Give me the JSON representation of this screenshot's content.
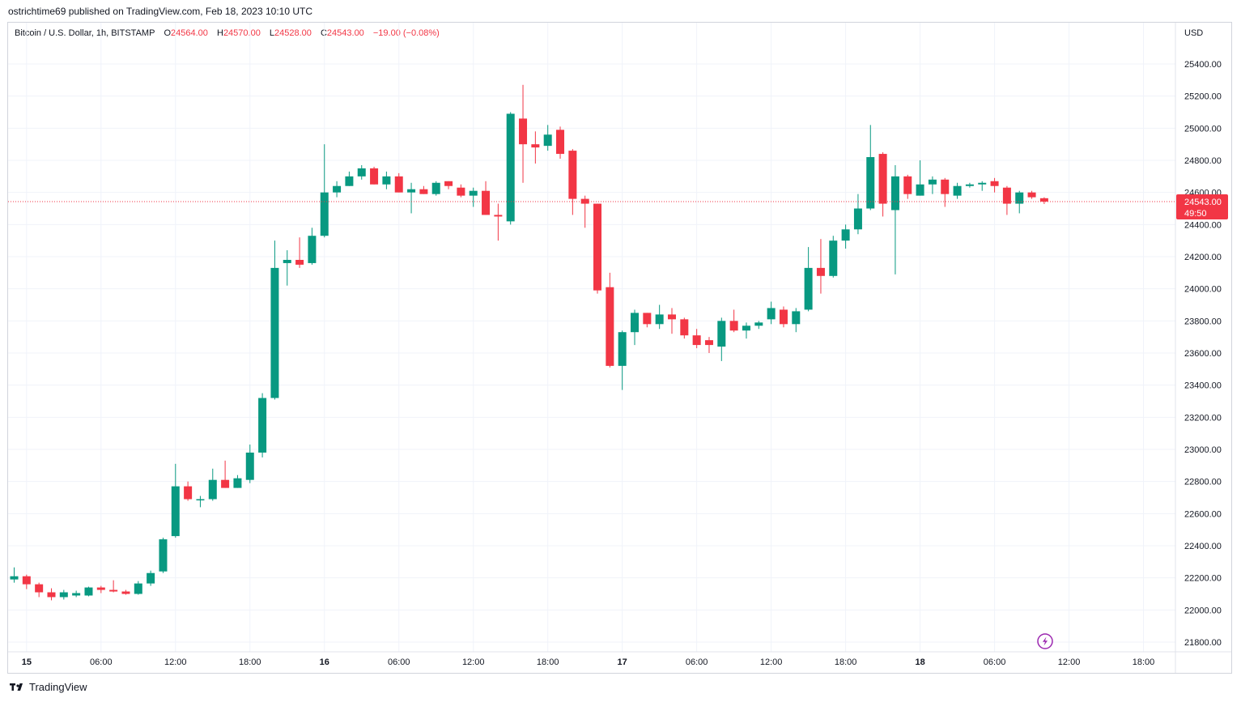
{
  "header": {
    "credit": "ostrichtime69 published on TradingView.com, Feb 18, 2023 10:10 UTC"
  },
  "legend": {
    "symbol": "Bitcoin / U.S. Dollar, 1h, BITSTAMP",
    "open_label": "O",
    "open": "24564.00",
    "high_label": "H",
    "high": "24570.00",
    "low_label": "L",
    "low": "24528.00",
    "close_label": "C",
    "close": "24543.00",
    "change": "−19.00 (−0.08%)"
  },
  "price_axis": {
    "currency": "USD",
    "last_price": "24543.00",
    "countdown": "49:50"
  },
  "footer": {
    "brand": "TradingView"
  },
  "colors": {
    "up": "#089981",
    "down": "#f23645",
    "grid": "#f0f3fa",
    "price_line": "#f23645",
    "flash_icon": "#9c27b0"
  },
  "chart_data": {
    "type": "candlestick",
    "interval": "1h",
    "ylim": [
      21750,
      25600
    ],
    "y_ticks": [
      21800,
      22000,
      22200,
      22400,
      22600,
      22800,
      23000,
      23200,
      23400,
      23600,
      23800,
      24000,
      24200,
      24400,
      24600,
      24800,
      25000,
      25200,
      25400
    ],
    "x_ticks": [
      {
        "label": "15",
        "bold": true,
        "index": 1
      },
      {
        "label": "06:00",
        "bold": false,
        "index": 7
      },
      {
        "label": "12:00",
        "bold": false,
        "index": 13
      },
      {
        "label": "18:00",
        "bold": false,
        "index": 19
      },
      {
        "label": "16",
        "bold": true,
        "index": 25
      },
      {
        "label": "06:00",
        "bold": false,
        "index": 31
      },
      {
        "label": "12:00",
        "bold": false,
        "index": 37
      },
      {
        "label": "18:00",
        "bold": false,
        "index": 43
      },
      {
        "label": "17",
        "bold": true,
        "index": 49
      },
      {
        "label": "06:00",
        "bold": false,
        "index": 55
      },
      {
        "label": "12:00",
        "bold": false,
        "index": 61
      },
      {
        "label": "18:00",
        "bold": false,
        "index": 67
      },
      {
        "label": "18",
        "bold": true,
        "index": 73
      },
      {
        "label": "06:00",
        "bold": false,
        "index": 79
      },
      {
        "label": "12:00",
        "bold": false,
        "index": 85
      },
      {
        "label": "18:00",
        "bold": false,
        "index": 91
      }
    ],
    "last_price": 24543,
    "candles": [
      [
        22190,
        22265,
        22170,
        22210
      ],
      [
        22210,
        22220,
        22130,
        22160
      ],
      [
        22160,
        22170,
        22080,
        22110
      ],
      [
        22110,
        22135,
        22060,
        22080
      ],
      [
        22080,
        22125,
        22065,
        22110
      ],
      [
        22090,
        22120,
        22080,
        22105
      ],
      [
        22090,
        22145,
        22085,
        22140
      ],
      [
        22140,
        22150,
        22105,
        22125
      ],
      [
        22125,
        22185,
        22110,
        22115
      ],
      [
        22115,
        22125,
        22095,
        22100
      ],
      [
        22100,
        22180,
        22095,
        22165
      ],
      [
        22165,
        22245,
        22150,
        22230
      ],
      [
        22240,
        22450,
        22230,
        22440
      ],
      [
        22460,
        22910,
        22450,
        22770
      ],
      [
        22770,
        22800,
        22680,
        22690
      ],
      [
        22690,
        22710,
        22640,
        22690
      ],
      [
        22690,
        22880,
        22680,
        22810
      ],
      [
        22810,
        22930,
        22760,
        22760
      ],
      [
        22760,
        22840,
        22760,
        22820
      ],
      [
        22810,
        23030,
        22790,
        22980
      ],
      [
        22980,
        23350,
        22950,
        23320
      ],
      [
        23320,
        24300,
        23310,
        24130
      ],
      [
        24160,
        24240,
        24020,
        24180
      ],
      [
        24180,
        24320,
        24130,
        24150
      ],
      [
        24160,
        24380,
        24150,
        24330
      ],
      [
        24330,
        24900,
        24320,
        24600
      ],
      [
        24600,
        24670,
        24570,
        24640
      ],
      [
        24640,
        24730,
        24640,
        24700
      ],
      [
        24700,
        24770,
        24680,
        24750
      ],
      [
        24750,
        24760,
        24650,
        24650
      ],
      [
        24650,
        24730,
        24620,
        24700
      ],
      [
        24700,
        24720,
        24600,
        24600
      ],
      [
        24600,
        24660,
        24470,
        24620
      ],
      [
        24620,
        24640,
        24590,
        24590
      ],
      [
        24590,
        24670,
        24580,
        24660
      ],
      [
        24670,
        24670,
        24620,
        24640
      ],
      [
        24630,
        24650,
        24570,
        24580
      ],
      [
        24580,
        24630,
        24510,
        24610
      ],
      [
        24610,
        24670,
        24460,
        24460
      ],
      [
        24460,
        24530,
        24300,
        24450
      ],
      [
        24420,
        25100,
        24400,
        25090
      ],
      [
        25060,
        25270,
        24660,
        24900
      ],
      [
        24900,
        24980,
        24780,
        24880
      ],
      [
        24890,
        25020,
        24860,
        24960
      ],
      [
        24990,
        25010,
        24810,
        24840
      ],
      [
        24860,
        24870,
        24460,
        24560
      ],
      [
        24560,
        24580,
        24380,
        24530
      ],
      [
        24530,
        24530,
        23970,
        23990
      ],
      [
        24010,
        24100,
        23510,
        23520
      ],
      [
        23520,
        23740,
        23370,
        23730
      ],
      [
        23730,
        23870,
        23650,
        23850
      ],
      [
        23850,
        23850,
        23760,
        23780
      ],
      [
        23780,
        23900,
        23750,
        23840
      ],
      [
        23840,
        23880,
        23720,
        23810
      ],
      [
        23810,
        23820,
        23690,
        23710
      ],
      [
        23710,
        23750,
        23630,
        23650
      ],
      [
        23680,
        23700,
        23600,
        23650
      ],
      [
        23640,
        23820,
        23550,
        23800
      ],
      [
        23800,
        23870,
        23730,
        23740
      ],
      [
        23740,
        23790,
        23690,
        23770
      ],
      [
        23770,
        23800,
        23750,
        23790
      ],
      [
        23810,
        23920,
        23780,
        23880
      ],
      [
        23870,
        23890,
        23760,
        23780
      ],
      [
        23780,
        23880,
        23730,
        23860
      ],
      [
        23870,
        24260,
        23860,
        24130
      ],
      [
        24130,
        24310,
        23970,
        24080
      ],
      [
        24080,
        24330,
        24070,
        24300
      ],
      [
        24300,
        24400,
        24250,
        24370
      ],
      [
        24370,
        24590,
        24340,
        24500
      ],
      [
        24500,
        25020,
        24490,
        24820
      ],
      [
        24840,
        24850,
        24450,
        24530
      ],
      [
        24490,
        24770,
        24090,
        24700
      ],
      [
        24700,
        24710,
        24560,
        24590
      ],
      [
        24580,
        24800,
        24580,
        24650
      ],
      [
        24650,
        24700,
        24590,
        24680
      ],
      [
        24680,
        24690,
        24510,
        24590
      ],
      [
        24580,
        24660,
        24560,
        24640
      ],
      [
        24640,
        24660,
        24630,
        24650
      ],
      [
        24650,
        24670,
        24610,
        24660
      ],
      [
        24670,
        24690,
        24600,
        24640
      ],
      [
        24630,
        24640,
        24460,
        24530
      ],
      [
        24530,
        24610,
        24470,
        24600
      ],
      [
        24600,
        24610,
        24560,
        24570
      ],
      [
        24564,
        24570,
        24528,
        24543
      ]
    ]
  }
}
